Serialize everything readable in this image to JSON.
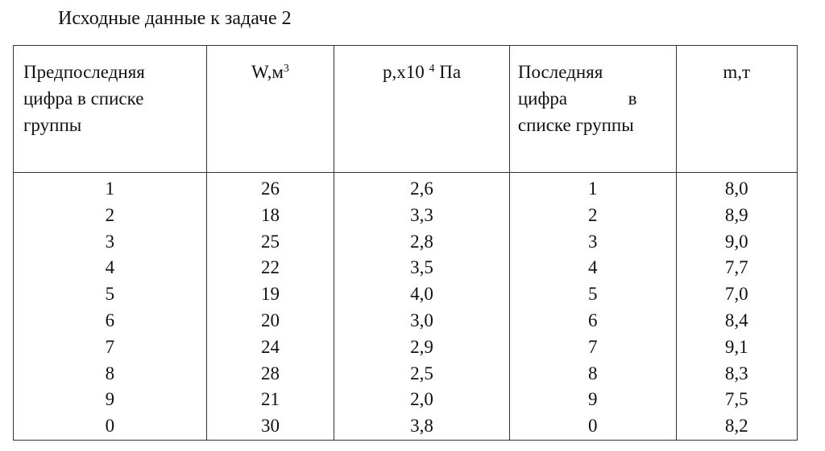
{
  "title": "Исходные данные к задаче 2",
  "table": {
    "headers": {
      "col1": "Предпоследняя цифра в списке группы",
      "col2_base": "W,м",
      "col2_sup": "3",
      "col3_base": "p,x10",
      "col3_sup": "4",
      "col3_unit": " Па",
      "col4": "Последняя цифра в списке группы",
      "col5": "m,т"
    },
    "rows": [
      [
        "1",
        "26",
        "2,6",
        "1",
        "8,0"
      ],
      [
        "2",
        "18",
        "3,3",
        "2",
        "8,9"
      ],
      [
        "3",
        "25",
        "2,8",
        "3",
        "9,0"
      ],
      [
        "4",
        "22",
        "3,5",
        "4",
        "7,7"
      ],
      [
        "5",
        "19",
        "4,0",
        "5",
        "7,0"
      ],
      [
        "6",
        "20",
        "3,0",
        "6",
        "8,4"
      ],
      [
        "7",
        "24",
        "2,9",
        "7",
        "9,1"
      ],
      [
        "8",
        "28",
        "2,5",
        "8",
        "8,3"
      ],
      [
        "9",
        "21",
        "2,0",
        "9",
        "7,5"
      ],
      [
        "0",
        "30",
        "3,8",
        "0",
        "8,2"
      ]
    ]
  }
}
